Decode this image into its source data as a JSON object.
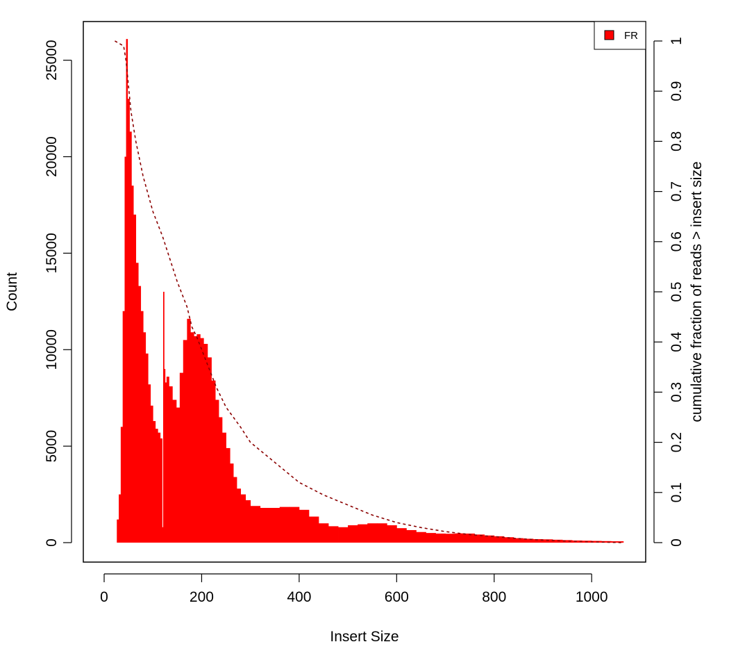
{
  "chart_data": {
    "type": "area",
    "xlabel": "Insert Size",
    "ylabel": "Count",
    "y2label": "cumulative fraction of reads > insert size",
    "xlim": [
      0,
      1100
    ],
    "ylim": [
      0,
      26000
    ],
    "y2lim": [
      0,
      1
    ],
    "x_ticks": [
      "0",
      "200",
      "400",
      "600",
      "800",
      "1000"
    ],
    "y_ticks": [
      "0",
      "5000",
      "10000",
      "15000",
      "20000",
      "25000"
    ],
    "y2_ticks": [
      "0",
      "0.1",
      "0.2",
      "0.3",
      "0.4",
      "0.5",
      "0.6",
      "0.7",
      "0.8",
      "0.9",
      "1"
    ],
    "legend": {
      "position": "top-right",
      "entries": [
        {
          "label": "FR",
          "color": "#ff0000"
        }
      ]
    },
    "series": [
      {
        "name": "FR",
        "style": "histogram",
        "color": "#ff0000",
        "x": [
          22,
          26,
          30,
          34,
          38,
          42,
          45,
          48,
          52,
          56,
          60,
          65,
          70,
          75,
          80,
          85,
          90,
          95,
          100,
          105,
          110,
          115,
          119,
          121,
          123,
          125,
          128,
          133,
          140,
          148,
          155,
          162,
          170,
          177,
          184,
          190,
          197,
          204,
          212,
          220,
          228,
          235,
          242,
          250,
          258,
          265,
          272,
          280,
          290,
          300,
          320,
          340,
          360,
          380,
          400,
          420,
          440,
          460,
          480,
          500,
          520,
          540,
          560,
          580,
          600,
          620,
          640,
          660,
          680,
          700,
          720,
          740,
          760,
          780,
          800,
          820,
          840,
          860,
          880,
          900,
          920,
          940,
          960,
          980,
          1000,
          1020,
          1040,
          1065
        ],
        "values": [
          0,
          1200,
          2500,
          6000,
          12000,
          20000,
          26100,
          23000,
          21300,
          18500,
          17000,
          14500,
          13300,
          12000,
          10900,
          9800,
          8200,
          7100,
          6300,
          5900,
          5700,
          5400,
          800,
          13000,
          9000,
          8300,
          8600,
          8100,
          7400,
          7000,
          8800,
          10500,
          11600,
          10900,
          10700,
          10800,
          10600,
          10300,
          9600,
          8400,
          7400,
          6500,
          5700,
          4900,
          4100,
          3400,
          2800,
          2500,
          2200,
          1900,
          1800,
          1800,
          1850,
          1850,
          1700,
          1350,
          1000,
          850,
          800,
          900,
          950,
          1000,
          1000,
          900,
          750,
          650,
          550,
          500,
          470,
          460,
          480,
          470,
          420,
          370,
          330,
          280,
          230,
          200,
          180,
          170,
          150,
          130,
          110,
          100,
          90,
          80,
          70,
          40
        ]
      },
      {
        "name": "cumulative",
        "style": "dashed-line",
        "axis": "right",
        "color": "#8b0000",
        "x": [
          22,
          40,
          45,
          55,
          65,
          80,
          100,
          120,
          130,
          150,
          170,
          180,
          190,
          210,
          230,
          250,
          280,
          300,
          350,
          400,
          450,
          500,
          550,
          600,
          650,
          700,
          750,
          800,
          850,
          900,
          950,
          1000,
          1065
        ],
        "values": [
          1.0,
          0.99,
          0.96,
          0.86,
          0.8,
          0.73,
          0.66,
          0.61,
          0.58,
          0.52,
          0.47,
          0.43,
          0.41,
          0.36,
          0.31,
          0.27,
          0.23,
          0.2,
          0.16,
          0.12,
          0.095,
          0.075,
          0.055,
          0.04,
          0.03,
          0.022,
          0.016,
          0.012,
          0.008,
          0.005,
          0.003,
          0.0015,
          0.0
        ]
      }
    ]
  }
}
